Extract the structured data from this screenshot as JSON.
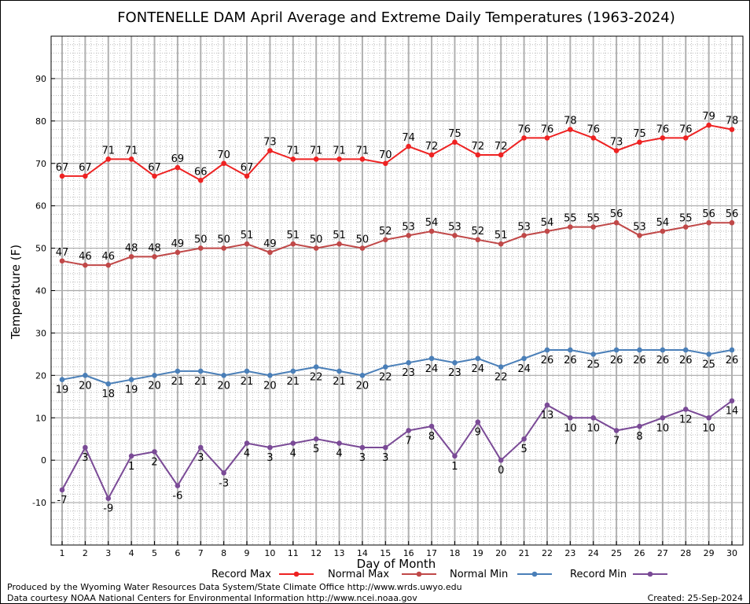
{
  "chart_data": {
    "type": "line",
    "title": "FONTENELLE DAM April Average and Extreme Daily Temperatures (1963-2024)",
    "xlabel": "Day of Month",
    "ylabel": "Temperature (F)",
    "ylim": [
      -20,
      100
    ],
    "y_ticks": [
      -10,
      0,
      10,
      20,
      30,
      40,
      50,
      60,
      70,
      80,
      90
    ],
    "grid": true,
    "legend_position": "bottom",
    "x": [
      1,
      2,
      3,
      4,
      5,
      6,
      7,
      8,
      9,
      10,
      11,
      12,
      13,
      14,
      15,
      16,
      17,
      18,
      19,
      20,
      21,
      22,
      23,
      24,
      25,
      26,
      27,
      28,
      29,
      30
    ],
    "series": [
      {
        "name": "Record Max",
        "color": "#ee2222",
        "label_position": "above",
        "values": [
          67,
          67,
          71,
          71,
          67,
          69,
          66,
          70,
          67,
          73,
          71,
          71,
          71,
          71,
          70,
          74,
          72,
          75,
          72,
          72,
          76,
          76,
          78,
          76,
          73,
          75,
          76,
          76,
          79,
          78
        ]
      },
      {
        "name": "Normal Max",
        "color": "#c04848",
        "label_position": "above",
        "values": [
          47,
          46,
          46,
          48,
          48,
          49,
          50,
          50,
          51,
          49,
          51,
          50,
          51,
          50,
          52,
          53,
          54,
          53,
          52,
          51,
          53,
          54,
          55,
          55,
          56,
          53,
          54,
          55,
          56,
          56
        ]
      },
      {
        "name": "Normal Min",
        "color": "#4a7fb8",
        "label_position": "below",
        "values": [
          19,
          20,
          18,
          19,
          20,
          21,
          21,
          20,
          21,
          20,
          21,
          22,
          21,
          20,
          22,
          23,
          24,
          23,
          24,
          22,
          24,
          26,
          26,
          25,
          26,
          26,
          26,
          26,
          25,
          26
        ]
      },
      {
        "name": "Record Min",
        "color": "#7a4a96",
        "label_position": "below",
        "values": [
          -7,
          3,
          -9,
          1,
          2,
          -6,
          3,
          -3,
          4,
          3,
          4,
          5,
          4,
          3,
          3,
          7,
          8,
          1,
          9,
          0,
          5,
          13,
          10,
          10,
          7,
          8,
          10,
          12,
          10,
          14
        ]
      }
    ]
  },
  "footer": {
    "produced_by": "Produced by the Wyoming Water Resources Data System/State Climate Office http://www.wrds.uwyo.edu",
    "courtesy": "Data courtesy NOAA National Centers for Environmental Information http://www.ncei.noaa.gov",
    "created": "Created:  25-Sep-2024"
  }
}
